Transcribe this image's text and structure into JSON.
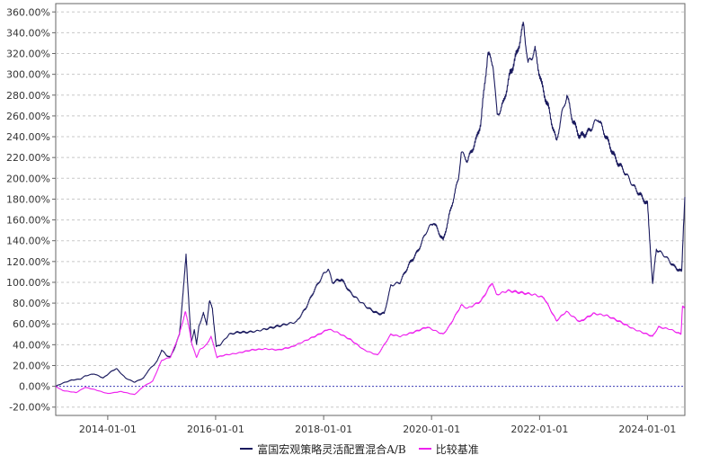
{
  "chart_data": {
    "type": "line",
    "title": "",
    "xlabel": "",
    "ylabel": "",
    "x_ticks": [
      "2014-01-01",
      "2016-01-01",
      "2018-01-01",
      "2020-01-01",
      "2022-01-01",
      "2024-01-01"
    ],
    "y_ticks": [
      "360.00%",
      "340.00%",
      "320.00%",
      "300.00%",
      "280.00%",
      "260.00%",
      "240.00%",
      "220.00%",
      "200.00%",
      "180.00%",
      "160.00%",
      "140.00%",
      "120.00%",
      "100.00%",
      "80.00%",
      "60.00%",
      "40.00%",
      "20.00%",
      "0.00%",
      "-20.00%"
    ],
    "x_range": [
      "2013-01-14",
      "2024-09-10"
    ],
    "ylim": [
      -28,
      368
    ],
    "grid": true,
    "legend_position": "bottom",
    "series": [
      {
        "name": "富国宏观策略灵活配置混合A/B",
        "color": "#1a1a5e",
        "points": [
          [
            "2013-01-14",
            0
          ],
          [
            "2013-03-01",
            3
          ],
          [
            "2013-05-01",
            6
          ],
          [
            "2013-07-01",
            7
          ],
          [
            "2013-08-01",
            10
          ],
          [
            "2013-10-01",
            12
          ],
          [
            "2013-12-01",
            8
          ],
          [
            "2014-02-01",
            15
          ],
          [
            "2014-03-01",
            17
          ],
          [
            "2014-05-01",
            8
          ],
          [
            "2014-07-01",
            4
          ],
          [
            "2014-09-01",
            8
          ],
          [
            "2014-10-01",
            15
          ],
          [
            "2014-12-01",
            24
          ],
          [
            "2015-01-01",
            35
          ],
          [
            "2015-02-01",
            30
          ],
          [
            "2015-03-01",
            28
          ],
          [
            "2015-04-01",
            38
          ],
          [
            "2015-05-01",
            50
          ],
          [
            "2015-06-01",
            100
          ],
          [
            "2015-06-15",
            127
          ],
          [
            "2015-07-08",
            70
          ],
          [
            "2015-07-20",
            42
          ],
          [
            "2015-08-10",
            55
          ],
          [
            "2015-08-25",
            40
          ],
          [
            "2015-09-10",
            58
          ],
          [
            "2015-10-10",
            70
          ],
          [
            "2015-11-01",
            60
          ],
          [
            "2015-11-20",
            82
          ],
          [
            "2015-12-10",
            75
          ],
          [
            "2016-01-05",
            38
          ],
          [
            "2016-02-01",
            40
          ],
          [
            "2016-04-01",
            50
          ],
          [
            "2016-06-01",
            52
          ],
          [
            "2016-08-01",
            52
          ],
          [
            "2016-10-01",
            53
          ],
          [
            "2016-12-01",
            55
          ],
          [
            "2017-03-01",
            58
          ],
          [
            "2017-05-01",
            60
          ],
          [
            "2017-07-01",
            62
          ],
          [
            "2017-09-01",
            75
          ],
          [
            "2017-11-01",
            93
          ],
          [
            "2018-01-01",
            108
          ],
          [
            "2018-02-01",
            113
          ],
          [
            "2018-03-01",
            100
          ],
          [
            "2018-05-01",
            103
          ],
          [
            "2018-07-01",
            90
          ],
          [
            "2018-09-01",
            82
          ],
          [
            "2018-11-01",
            75
          ],
          [
            "2019-01-01",
            70
          ],
          [
            "2019-02-15",
            70
          ],
          [
            "2019-04-01",
            97
          ],
          [
            "2019-06-01",
            100
          ],
          [
            "2019-08-01",
            117
          ],
          [
            "2019-10-01",
            130
          ],
          [
            "2019-12-01",
            150
          ],
          [
            "2020-01-15",
            158
          ],
          [
            "2020-03-20",
            140
          ],
          [
            "2020-05-01",
            165
          ],
          [
            "2020-07-01",
            200
          ],
          [
            "2020-07-20",
            225
          ],
          [
            "2020-09-01",
            217
          ],
          [
            "2020-11-01",
            238
          ],
          [
            "2020-12-01",
            255
          ],
          [
            "2021-01-15",
            320
          ],
          [
            "2021-02-20",
            310
          ],
          [
            "2021-03-20",
            260
          ],
          [
            "2021-05-01",
            272
          ],
          [
            "2021-06-15",
            300
          ],
          [
            "2021-08-01",
            320
          ],
          [
            "2021-09-01",
            340
          ],
          [
            "2021-09-15",
            348
          ],
          [
            "2021-10-15",
            310
          ],
          [
            "2021-12-01",
            323
          ],
          [
            "2022-01-15",
            290
          ],
          [
            "2022-03-01",
            268
          ],
          [
            "2022-04-25",
            235
          ],
          [
            "2022-06-01",
            262
          ],
          [
            "2022-07-05",
            280
          ],
          [
            "2022-08-15",
            255
          ],
          [
            "2022-10-01",
            240
          ],
          [
            "2022-12-01",
            245
          ],
          [
            "2023-02-01",
            258
          ],
          [
            "2023-04-01",
            238
          ],
          [
            "2023-06-01",
            218
          ],
          [
            "2023-08-01",
            206
          ],
          [
            "2023-10-01",
            192
          ],
          [
            "2024-01-01",
            175
          ],
          [
            "2024-02-05",
            98
          ],
          [
            "2024-03-01",
            132
          ],
          [
            "2024-05-01",
            125
          ],
          [
            "2024-07-01",
            115
          ],
          [
            "2024-08-20",
            110
          ],
          [
            "2024-09-01",
            155
          ],
          [
            "2024-09-10",
            182
          ]
        ]
      },
      {
        "name": "比较基准",
        "color": "#ee22ee",
        "points": [
          [
            "2013-01-14",
            0
          ],
          [
            "2013-03-01",
            -4
          ],
          [
            "2013-06-01",
            -6
          ],
          [
            "2013-08-01",
            -1
          ],
          [
            "2013-10-01",
            -3
          ],
          [
            "2014-01-01",
            -7
          ],
          [
            "2014-04-01",
            -5
          ],
          [
            "2014-07-01",
            -8
          ],
          [
            "2014-09-01",
            0
          ],
          [
            "2014-11-01",
            5
          ],
          [
            "2015-01-01",
            25
          ],
          [
            "2015-03-01",
            28
          ],
          [
            "2015-05-01",
            50
          ],
          [
            "2015-06-10",
            72
          ],
          [
            "2015-07-08",
            55
          ],
          [
            "2015-07-25",
            40
          ],
          [
            "2015-08-25",
            28
          ],
          [
            "2015-09-15",
            35
          ],
          [
            "2015-11-01",
            40
          ],
          [
            "2015-12-01",
            48
          ],
          [
            "2016-01-10",
            28
          ],
          [
            "2016-03-01",
            30
          ],
          [
            "2016-06-01",
            32
          ],
          [
            "2016-09-01",
            35
          ],
          [
            "2016-12-01",
            36
          ],
          [
            "2017-03-01",
            35
          ],
          [
            "2017-06-01",
            38
          ],
          [
            "2017-09-01",
            44
          ],
          [
            "2017-12-01",
            50
          ],
          [
            "2018-02-01",
            55
          ],
          [
            "2018-04-01",
            52
          ],
          [
            "2018-07-01",
            45
          ],
          [
            "2018-10-01",
            35
          ],
          [
            "2019-01-01",
            30
          ],
          [
            "2019-04-01",
            50
          ],
          [
            "2019-06-01",
            48
          ],
          [
            "2019-09-01",
            52
          ],
          [
            "2019-12-01",
            57
          ],
          [
            "2020-03-20",
            50
          ],
          [
            "2020-05-01",
            58
          ],
          [
            "2020-07-20",
            78
          ],
          [
            "2020-09-01",
            75
          ],
          [
            "2020-12-01",
            82
          ],
          [
            "2021-02-15",
            100
          ],
          [
            "2021-03-15",
            88
          ],
          [
            "2021-06-01",
            92
          ],
          [
            "2021-09-01",
            90
          ],
          [
            "2021-12-01",
            88
          ],
          [
            "2022-02-01",
            85
          ],
          [
            "2022-04-25",
            63
          ],
          [
            "2022-07-01",
            72
          ],
          [
            "2022-10-01",
            62
          ],
          [
            "2023-01-01",
            70
          ],
          [
            "2023-04-01",
            68
          ],
          [
            "2023-07-01",
            62
          ],
          [
            "2023-10-01",
            55
          ],
          [
            "2024-01-01",
            50
          ],
          [
            "2024-02-05",
            48
          ],
          [
            "2024-03-15",
            57
          ],
          [
            "2024-06-01",
            55
          ],
          [
            "2024-08-15",
            50
          ],
          [
            "2024-08-25",
            78
          ],
          [
            "2024-09-10",
            75
          ]
        ]
      }
    ]
  },
  "legend": {
    "item0": "富国宏观策略灵活配置混合A/B",
    "item1": "比较基准",
    "color0": "#1a1a5e",
    "color1": "#ee22ee"
  },
  "colors": {
    "grid": "#c8c8c8",
    "axis": "#666666",
    "zero_line": "#3b3bb5"
  }
}
